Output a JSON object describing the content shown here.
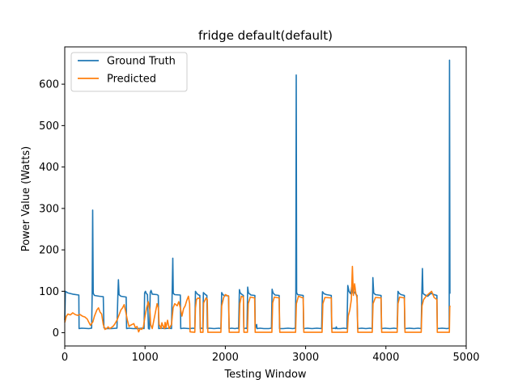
{
  "chart_data": {
    "type": "line",
    "title": "fridge default(default)",
    "xlabel": "Testing Window",
    "ylabel": "Power Value (Watts)",
    "xlim": [
      0,
      5000
    ],
    "ylim": [
      -32,
      690
    ],
    "xticks": [
      0,
      1000,
      2000,
      3000,
      4000,
      5000
    ],
    "yticks": [
      0,
      100,
      200,
      300,
      400,
      500,
      600
    ],
    "grid": false,
    "legend_position": "top-left",
    "series": [
      {
        "name": "Ground Truth",
        "color": "#1f77b4",
        "points": [
          [
            0,
            30
          ],
          [
            8,
            100
          ],
          [
            40,
            96
          ],
          [
            100,
            93
          ],
          [
            175,
            91
          ],
          [
            178,
            10
          ],
          [
            210,
            11
          ],
          [
            300,
            10
          ],
          [
            335,
            11
          ],
          [
            342,
            95
          ],
          [
            348,
            296
          ],
          [
            355,
            95
          ],
          [
            370,
            90
          ],
          [
            430,
            88
          ],
          [
            480,
            87
          ],
          [
            488,
            12
          ],
          [
            510,
            10
          ],
          [
            580,
            10
          ],
          [
            650,
            11
          ],
          [
            662,
            95
          ],
          [
            668,
            128
          ],
          [
            676,
            92
          ],
          [
            700,
            88
          ],
          [
            765,
            86
          ],
          [
            770,
            10
          ],
          [
            800,
            11
          ],
          [
            850,
            10
          ],
          [
            910,
            10
          ],
          [
            955,
            11
          ],
          [
            988,
            10
          ],
          [
            995,
            96
          ],
          [
            1005,
            100
          ],
          [
            1015,
            95
          ],
          [
            1030,
            92
          ],
          [
            1042,
            10
          ],
          [
            1055,
            9
          ],
          [
            1065,
            97
          ],
          [
            1075,
            102
          ],
          [
            1090,
            93
          ],
          [
            1150,
            92
          ],
          [
            1165,
            90
          ],
          [
            1170,
            10
          ],
          [
            1200,
            11
          ],
          [
            1250,
            10
          ],
          [
            1300,
            11
          ],
          [
            1330,
            10
          ],
          [
            1338,
            96
          ],
          [
            1346,
            180
          ],
          [
            1352,
            95
          ],
          [
            1370,
            92
          ],
          [
            1440,
            91
          ],
          [
            1445,
            10
          ],
          [
            1480,
            11
          ],
          [
            1550,
            10
          ],
          [
            1600,
            11
          ],
          [
            1620,
            10
          ],
          [
            1628,
            100
          ],
          [
            1640,
            96
          ],
          [
            1660,
            92
          ],
          [
            1682,
            90
          ],
          [
            1686,
            10
          ],
          [
            1700,
            11
          ],
          [
            1720,
            10
          ],
          [
            1727,
            97
          ],
          [
            1735,
            95
          ],
          [
            1760,
            91
          ],
          [
            1770,
            90
          ],
          [
            1776,
            10
          ],
          [
            1800,
            11
          ],
          [
            1860,
            10
          ],
          [
            1920,
            11
          ],
          [
            1945,
            10
          ],
          [
            1955,
            97
          ],
          [
            1962,
            94
          ],
          [
            1980,
            90
          ],
          [
            2040,
            89
          ],
          [
            2046,
            10
          ],
          [
            2080,
            11
          ],
          [
            2120,
            10
          ],
          [
            2150,
            11
          ],
          [
            2165,
            10
          ],
          [
            2175,
            104
          ],
          [
            2185,
            96
          ],
          [
            2210,
            92
          ],
          [
            2225,
            90
          ],
          [
            2230,
            10
          ],
          [
            2255,
            11
          ],
          [
            2270,
            10
          ],
          [
            2278,
            110
          ],
          [
            2288,
            96
          ],
          [
            2320,
            91
          ],
          [
            2368,
            90
          ],
          [
            2372,
            10
          ],
          [
            2390,
            20
          ],
          [
            2395,
            10
          ],
          [
            2430,
            11
          ],
          [
            2480,
            10
          ],
          [
            2540,
            10
          ],
          [
            2575,
            11
          ],
          [
            2583,
            105
          ],
          [
            2595,
            96
          ],
          [
            2620,
            91
          ],
          [
            2670,
            90
          ],
          [
            2675,
            10
          ],
          [
            2720,
            10
          ],
          [
            2780,
            11
          ],
          [
            2840,
            10
          ],
          [
            2872,
            11
          ],
          [
            2878,
            96
          ],
          [
            2883,
            622
          ],
          [
            2888,
            97
          ],
          [
            2900,
            92
          ],
          [
            2970,
            90
          ],
          [
            2975,
            10
          ],
          [
            3020,
            11
          ],
          [
            3080,
            10
          ],
          [
            3140,
            11
          ],
          [
            3200,
            10
          ],
          [
            3210,
            99
          ],
          [
            3230,
            94
          ],
          [
            3260,
            92
          ],
          [
            3320,
            90
          ],
          [
            3325,
            10
          ],
          [
            3360,
            11
          ],
          [
            3375,
            10
          ],
          [
            3382,
            14
          ],
          [
            3390,
            10
          ],
          [
            3430,
            10
          ],
          [
            3475,
            11
          ],
          [
            3515,
            10
          ],
          [
            3525,
            114
          ],
          [
            3540,
            100
          ],
          [
            3560,
            94
          ],
          [
            3575,
            110
          ],
          [
            3590,
            95
          ],
          [
            3610,
            98
          ],
          [
            3625,
            93
          ],
          [
            3640,
            90
          ],
          [
            3648,
            10
          ],
          [
            3700,
            11
          ],
          [
            3750,
            10
          ],
          [
            3800,
            11
          ],
          [
            3830,
            10
          ],
          [
            3838,
            133
          ],
          [
            3848,
            96
          ],
          [
            3870,
            92
          ],
          [
            3940,
            90
          ],
          [
            3945,
            10
          ],
          [
            3990,
            11
          ],
          [
            4050,
            10
          ],
          [
            4100,
            11
          ],
          [
            4140,
            10
          ],
          [
            4150,
            100
          ],
          [
            4165,
            95
          ],
          [
            4190,
            92
          ],
          [
            4230,
            90
          ],
          [
            4235,
            10
          ],
          [
            4290,
            11
          ],
          [
            4350,
            10
          ],
          [
            4400,
            11
          ],
          [
            4440,
            10
          ],
          [
            4448,
            96
          ],
          [
            4455,
            155
          ],
          [
            4462,
            95
          ],
          [
            4480,
            92
          ],
          [
            4520,
            88
          ],
          [
            4560,
            95
          ],
          [
            4600,
            92
          ],
          [
            4635,
            90
          ],
          [
            4640,
            10
          ],
          [
            4700,
            11
          ],
          [
            4760,
            10
          ],
          [
            4788,
            11
          ],
          [
            4792,
            658
          ],
          [
            4797,
            95
          ],
          [
            4800,
            94
          ]
        ]
      },
      {
        "name": "Predicted",
        "color": "#ff7f0e",
        "points": [
          [
            0,
            25
          ],
          [
            20,
            40
          ],
          [
            40,
            45
          ],
          [
            70,
            43
          ],
          [
            100,
            48
          ],
          [
            130,
            44
          ],
          [
            160,
            42
          ],
          [
            190,
            44
          ],
          [
            220,
            40
          ],
          [
            250,
            38
          ],
          [
            280,
            33
          ],
          [
            300,
            25
          ],
          [
            320,
            18
          ],
          [
            350,
            26
          ],
          [
            370,
            40
          ],
          [
            400,
            55
          ],
          [
            420,
            60
          ],
          [
            440,
            50
          ],
          [
            460,
            45
          ],
          [
            480,
            20
          ],
          [
            500,
            8
          ],
          [
            520,
            10
          ],
          [
            540,
            14
          ],
          [
            560,
            10
          ],
          [
            600,
            15
          ],
          [
            620,
            20
          ],
          [
            650,
            30
          ],
          [
            680,
            45
          ],
          [
            700,
            55
          ],
          [
            720,
            60
          ],
          [
            740,
            68
          ],
          [
            760,
            50
          ],
          [
            780,
            30
          ],
          [
            800,
            15
          ],
          [
            820,
            18
          ],
          [
            840,
            20
          ],
          [
            860,
            22
          ],
          [
            880,
            12
          ],
          [
            900,
            15
          ],
          [
            920,
            2
          ],
          [
            940,
            10
          ],
          [
            960,
            8
          ],
          [
            980,
            14
          ],
          [
            1000,
            40
          ],
          [
            1020,
            60
          ],
          [
            1040,
            75
          ],
          [
            1060,
            55
          ],
          [
            1070,
            20
          ],
          [
            1090,
            10
          ],
          [
            1110,
            30
          ],
          [
            1130,
            50
          ],
          [
            1150,
            70
          ],
          [
            1165,
            60
          ],
          [
            1175,
            20
          ],
          [
            1190,
            15
          ],
          [
            1200,
            10
          ],
          [
            1210,
            24
          ],
          [
            1220,
            18
          ],
          [
            1240,
            10
          ],
          [
            1250,
            25
          ],
          [
            1260,
            12
          ],
          [
            1280,
            30
          ],
          [
            1300,
            10
          ],
          [
            1330,
            20
          ],
          [
            1350,
            60
          ],
          [
            1370,
            70
          ],
          [
            1400,
            65
          ],
          [
            1420,
            75
          ],
          [
            1440,
            60
          ],
          [
            1460,
            40
          ],
          [
            1480,
            58
          ],
          [
            1500,
            65
          ],
          [
            1520,
            78
          ],
          [
            1540,
            88
          ],
          [
            1555,
            70
          ],
          [
            1560,
            2
          ],
          [
            1620,
            1
          ],
          [
            1628,
            60
          ],
          [
            1640,
            80
          ],
          [
            1660,
            84
          ],
          [
            1682,
            82
          ],
          [
            1690,
            1
          ],
          [
            1722,
            1
          ],
          [
            1730,
            72
          ],
          [
            1760,
            84
          ],
          [
            1775,
            80
          ],
          [
            1782,
            1
          ],
          [
            1945,
            1
          ],
          [
            1955,
            65
          ],
          [
            1980,
            85
          ],
          [
            2000,
            92
          ],
          [
            2040,
            88
          ],
          [
            2048,
            1
          ],
          [
            2170,
            1
          ],
          [
            2180,
            70
          ],
          [
            2200,
            88
          ],
          [
            2225,
            86
          ],
          [
            2232,
            1
          ],
          [
            2275,
            1
          ],
          [
            2285,
            70
          ],
          [
            2310,
            86
          ],
          [
            2365,
            84
          ],
          [
            2372,
            1
          ],
          [
            2580,
            1
          ],
          [
            2590,
            72
          ],
          [
            2610,
            86
          ],
          [
            2670,
            84
          ],
          [
            2678,
            1
          ],
          [
            2875,
            1
          ],
          [
            2885,
            70
          ],
          [
            2910,
            88
          ],
          [
            2970,
            84
          ],
          [
            2978,
            1
          ],
          [
            3205,
            1
          ],
          [
            3215,
            70
          ],
          [
            3240,
            85
          ],
          [
            3320,
            84
          ],
          [
            3328,
            1
          ],
          [
            3520,
            1
          ],
          [
            3530,
            40
          ],
          [
            3550,
            55
          ],
          [
            3570,
            80
          ],
          [
            3583,
            160
          ],
          [
            3595,
            90
          ],
          [
            3610,
            118
          ],
          [
            3625,
            95
          ],
          [
            3640,
            85
          ],
          [
            3650,
            1
          ],
          [
            3830,
            1
          ],
          [
            3840,
            70
          ],
          [
            3870,
            85
          ],
          [
            3940,
            84
          ],
          [
            3948,
            1
          ],
          [
            4140,
            1
          ],
          [
            4150,
            70
          ],
          [
            4170,
            86
          ],
          [
            4230,
            84
          ],
          [
            4238,
            1
          ],
          [
            4440,
            1
          ],
          [
            4450,
            65
          ],
          [
            4470,
            80
          ],
          [
            4500,
            88
          ],
          [
            4540,
            95
          ],
          [
            4570,
            100
          ],
          [
            4600,
            85
          ],
          [
            4635,
            80
          ],
          [
            4640,
            1
          ],
          [
            4790,
            1
          ],
          [
            4795,
            62
          ],
          [
            4800,
            65
          ]
        ]
      }
    ]
  }
}
